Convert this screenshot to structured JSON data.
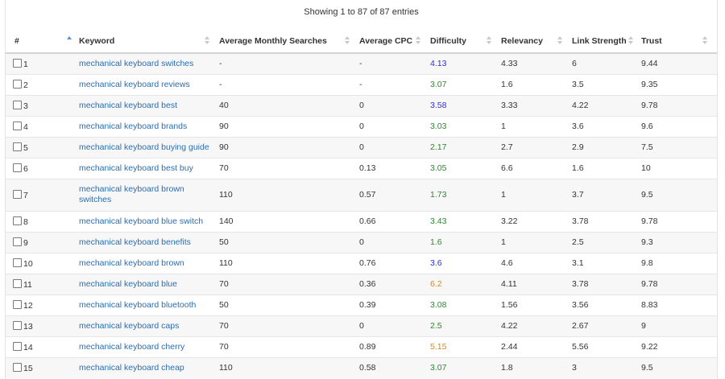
{
  "info": "Showing 1 to 87 of 87 entries",
  "columns": {
    "num": "#",
    "keyword": "Keyword",
    "searches": "Average Monthly Searches",
    "cpc": "Average CPC",
    "difficulty": "Difficulty",
    "relevancy": "Relevancy",
    "link": "Link Strength",
    "trust": "Trust"
  },
  "difficulty_colors": {
    "blue": "#2f2fd6",
    "green": "#2b8a2b",
    "orange": "#d68a1a"
  },
  "rows": [
    {
      "num": "1",
      "keyword": "mechanical keyboard switches",
      "searches": "-",
      "cpc": "-",
      "difficulty": "4.13",
      "diff_color": "blue",
      "relevancy": "4.33",
      "link": "6",
      "trust": "9.44"
    },
    {
      "num": "2",
      "keyword": "mechanical keyboard reviews",
      "searches": "-",
      "cpc": "-",
      "difficulty": "3.07",
      "diff_color": "green",
      "relevancy": "1.6",
      "link": "3.5",
      "trust": "9.35"
    },
    {
      "num": "3",
      "keyword": "mechanical keyboard best",
      "searches": "40",
      "cpc": "0",
      "difficulty": "3.58",
      "diff_color": "blue",
      "relevancy": "3.33",
      "link": "4.22",
      "trust": "9.78"
    },
    {
      "num": "4",
      "keyword": "mechanical keyboard brands",
      "searches": "90",
      "cpc": "0",
      "difficulty": "3.03",
      "diff_color": "green",
      "relevancy": "1",
      "link": "3.6",
      "trust": "9.6"
    },
    {
      "num": "5",
      "keyword": "mechanical keyboard buying guide",
      "searches": "90",
      "cpc": "0",
      "difficulty": "2.17",
      "diff_color": "green",
      "relevancy": "2.7",
      "link": "2.9",
      "trust": "7.5"
    },
    {
      "num": "6",
      "keyword": "mechanical keyboard best buy",
      "searches": "70",
      "cpc": "0.13",
      "difficulty": "3.05",
      "diff_color": "green",
      "relevancy": "6.6",
      "link": "1.6",
      "trust": "10"
    },
    {
      "num": "7",
      "keyword": "mechanical keyboard brown switches",
      "searches": "110",
      "cpc": "0.57",
      "difficulty": "1.73",
      "diff_color": "green",
      "relevancy": "1",
      "link": "3.7",
      "trust": "9.5",
      "tall": true
    },
    {
      "num": "8",
      "keyword": "mechanical keyboard blue switch",
      "searches": "140",
      "cpc": "0.66",
      "difficulty": "3.43",
      "diff_color": "green",
      "relevancy": "3.22",
      "link": "3.78",
      "trust": "9.78"
    },
    {
      "num": "9",
      "keyword": "mechanical keyboard benefits",
      "searches": "50",
      "cpc": "0",
      "difficulty": "1.6",
      "diff_color": "green",
      "relevancy": "1",
      "link": "2.5",
      "trust": "9.3"
    },
    {
      "num": "10",
      "keyword": "mechanical keyboard brown",
      "searches": "110",
      "cpc": "0.76",
      "difficulty": "3.6",
      "diff_color": "blue",
      "relevancy": "4.6",
      "link": "3.1",
      "trust": "9.8"
    },
    {
      "num": "11",
      "keyword": "mechanical keyboard blue",
      "searches": "70",
      "cpc": "0.36",
      "difficulty": "6.2",
      "diff_color": "orange",
      "relevancy": "4.11",
      "link": "3.78",
      "trust": "9.78"
    },
    {
      "num": "12",
      "keyword": "mechanical keyboard bluetooth",
      "searches": "50",
      "cpc": "0.39",
      "difficulty": "3.08",
      "diff_color": "green",
      "relevancy": "1.56",
      "link": "3.56",
      "trust": "8.83"
    },
    {
      "num": "13",
      "keyword": "mechanical keyboard caps",
      "searches": "70",
      "cpc": "0",
      "difficulty": "2.5",
      "diff_color": "green",
      "relevancy": "4.22",
      "link": "2.67",
      "trust": "9"
    },
    {
      "num": "14",
      "keyword": "mechanical keyboard cherry",
      "searches": "70",
      "cpc": "0.89",
      "difficulty": "5.15",
      "diff_color": "orange",
      "relevancy": "2.44",
      "link": "5.56",
      "trust": "9.22"
    },
    {
      "num": "15",
      "keyword": "mechanical keyboard cheap",
      "searches": "110",
      "cpc": "0.58",
      "difficulty": "3.07",
      "diff_color": "green",
      "relevancy": "1.8",
      "link": "3",
      "trust": "9.5"
    }
  ]
}
